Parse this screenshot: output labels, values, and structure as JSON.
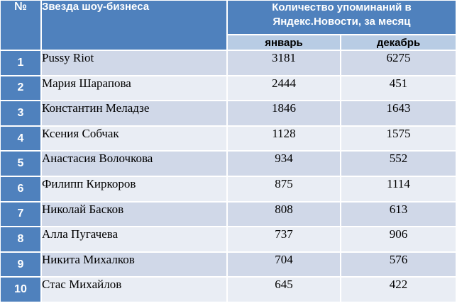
{
  "table": {
    "headers": {
      "num": "№",
      "star": "Звезда шоу-бизнеса",
      "count": "Количество упоминаний в Яндекс.Новости, за месяц",
      "january": "январь",
      "december": "декабрь"
    },
    "rows": [
      {
        "num": "1",
        "name": "Pussy Riot",
        "january": "3181",
        "december": "6275"
      },
      {
        "num": "2",
        "name": "Мария Шарапова",
        "january": "2444",
        "december": "451"
      },
      {
        "num": "3",
        "name": "Константин Меладзе",
        "january": "1846",
        "december": "1643"
      },
      {
        "num": "4",
        "name": "Ксения Собчак",
        "january": "1128",
        "december": "1575"
      },
      {
        "num": "5",
        "name": "Анастасия Волочкова",
        "january": "934",
        "december": "552"
      },
      {
        "num": "6",
        "name": "Филипп Киркоров",
        "january": "875",
        "december": "1114"
      },
      {
        "num": "7",
        "name": "Николай Басков",
        "january": "808",
        "december": "613"
      },
      {
        "num": "8",
        "name": "Алла Пугачева",
        "january": "737",
        "december": "906"
      },
      {
        "num": "9",
        "name": "Никита Михалков",
        "january": "704",
        "december": "576"
      },
      {
        "num": "10",
        "name": "Стас Михайлов",
        "january": "645",
        "december": "422"
      }
    ]
  },
  "colors": {
    "header_bg": "#4f81bd",
    "subheader_bg": "#b8cce4",
    "row_odd_bg": "#d0d8e8",
    "row_even_bg": "#e9edf4"
  }
}
